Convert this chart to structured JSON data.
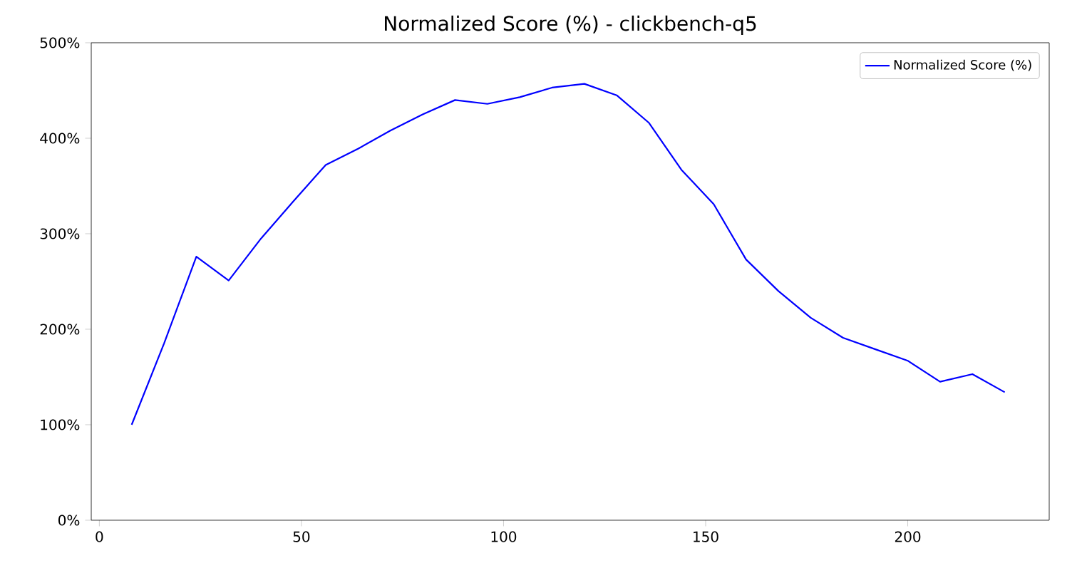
{
  "chart_data": {
    "type": "line",
    "title": "Normalized Score (%) - clickbench-q5",
    "x": [
      8,
      16,
      24,
      32,
      40,
      48,
      56,
      64,
      72,
      80,
      88,
      96,
      104,
      112,
      120,
      128,
      136,
      144,
      152,
      160,
      168,
      176,
      184,
      192,
      200,
      208,
      216,
      224
    ],
    "series": [
      {
        "name": "Normalized Score (%)",
        "color": "#0000ff",
        "values": [
          100,
          185,
          276,
          251,
          295,
          334,
          372,
          389,
          408,
          425,
          440,
          436,
          443,
          453,
          457,
          445,
          416,
          367,
          331,
          273,
          240,
          212,
          191,
          179,
          167,
          145,
          153,
          134
        ]
      }
    ],
    "xlim": [
      -2,
      235
    ],
    "xticks": [
      0,
      50,
      100,
      150,
      200
    ],
    "ylim": [
      0,
      500
    ],
    "yticks": [
      {
        "value": 0,
        "label": "0%"
      },
      {
        "value": 100,
        "label": "100%"
      },
      {
        "value": 200,
        "label": "200%"
      },
      {
        "value": 300,
        "label": "300%"
      },
      {
        "value": 400,
        "label": "400%"
      },
      {
        "value": 500,
        "label": "500%"
      }
    ],
    "legend": "top right",
    "grid": false,
    "marker": "none",
    "line_style": "solid"
  }
}
